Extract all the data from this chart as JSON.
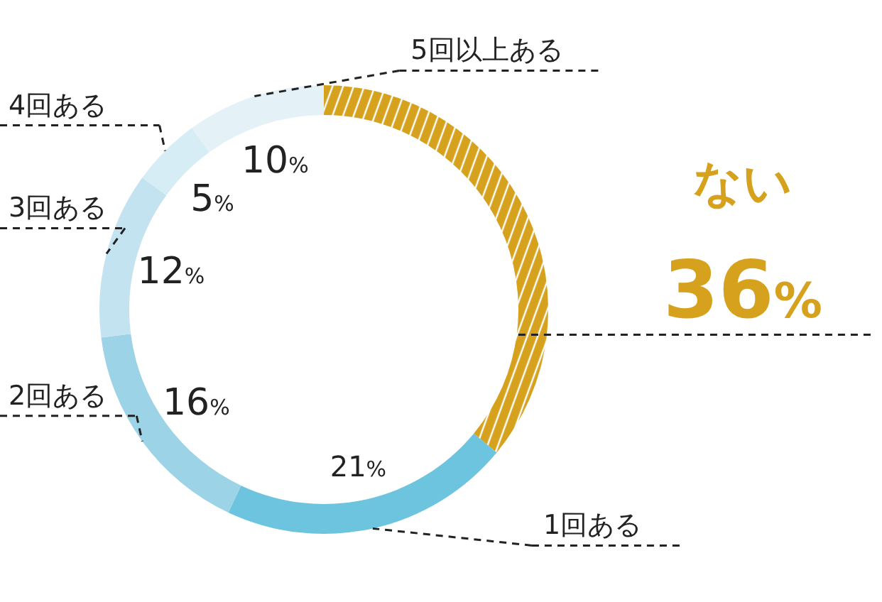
{
  "chart_data": {
    "type": "donut",
    "categories": [
      "ない",
      "1回ある",
      "2回ある",
      "3回ある",
      "4回ある",
      "5回以上ある"
    ],
    "values": [
      36,
      21,
      16,
      12,
      5,
      10
    ],
    "value_labels": [
      "36%",
      "21%",
      "16%",
      "12%",
      "5%",
      "10%"
    ],
    "colors": [
      "#d6a21e",
      "#6cc4de",
      "#9dd3e6",
      "#c2e3ef",
      "#d6edf5",
      "#e4f2f8"
    ]
  }
}
